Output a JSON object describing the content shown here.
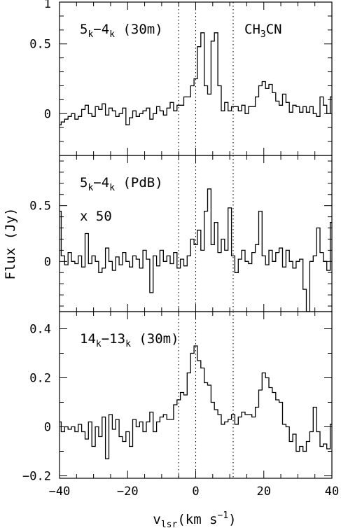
{
  "chart_data": {
    "type": "line",
    "shared_xlim": [
      -40,
      40
    ],
    "xlabel": {
      "main": "v",
      "sub": "lsr",
      "rest": "(km s",
      "sup": "−1",
      "close": ")"
    },
    "ylabel": "Flux (Jy)",
    "x_ticks": [
      "−40",
      "−20",
      "0",
      "20",
      "40"
    ],
    "x_tick_values": [
      -40,
      -20,
      0,
      20,
      40
    ],
    "reference_velocities": [
      -5,
      0,
      11
    ],
    "panels": [
      {
        "label": {
          "a": "5",
          "as": "k",
          "dash": "−",
          "b": "4",
          "bs": "k",
          "c": " (30m)"
        },
        "extra": {
          "a": "CH",
          "as": "3",
          "b": "CN"
        },
        "ylim": [
          -0.3,
          0.8
        ],
        "y_tick_labels": [
          "0",
          "0.5",
          "1"
        ],
        "y_tick_values": [
          0,
          0.5,
          1.0
        ],
        "x": [
          -40,
          -39,
          -38,
          -37,
          -36,
          -35,
          -34,
          -33,
          -32,
          -31,
          -30,
          -29,
          -28,
          -27,
          -26,
          -25,
          -24,
          -23,
          -22,
          -21,
          -20,
          -19,
          -18,
          -17,
          -16,
          -15,
          -14,
          -13,
          -12,
          -11,
          -10,
          -9,
          -8,
          -7,
          -6,
          -5,
          -4,
          -3,
          -2,
          -1,
          0,
          1,
          2,
          3,
          4,
          5,
          6,
          7,
          8,
          9,
          10,
          11,
          12,
          13,
          14,
          15,
          16,
          17,
          18,
          19,
          20,
          21,
          22,
          23,
          24,
          25,
          26,
          27,
          28,
          29,
          30,
          31,
          32,
          33,
          34,
          35,
          36,
          37,
          38,
          39,
          40
        ],
        "values": [
          -0.08,
          -0.06,
          -0.04,
          -0.02,
          0.0,
          -0.04,
          -0.02,
          0.03,
          0.06,
          0.0,
          -0.02,
          0.05,
          0.03,
          0.07,
          -0.01,
          0.04,
          0.02,
          -0.02,
          0.0,
          0.04,
          -0.08,
          -0.03,
          0.02,
          -0.02,
          0.0,
          0.02,
          0.04,
          -0.04,
          0.0,
          0.05,
          0.02,
          -0.01,
          0.04,
          0.08,
          0.02,
          0.06,
          0.06,
          0.12,
          0.12,
          0.2,
          0.25,
          0.48,
          0.58,
          0.2,
          0.14,
          0.52,
          0.58,
          0.2,
          0.02,
          0.08,
          0.02,
          0.05,
          0.05,
          0.02,
          0.06,
          0.0,
          0.05,
          0.05,
          0.12,
          0.2,
          0.23,
          0.18,
          0.21,
          0.15,
          0.09,
          0.06,
          0.14,
          0.08,
          0.01,
          0.06,
          0.05,
          0.01,
          0.05,
          0.01,
          0.05,
          0.0,
          -0.02,
          0.12,
          0.06,
          0.0,
          0.12
        ]
      },
      {
        "label": {
          "a": "5",
          "as": "k",
          "dash": "−",
          "b": "4",
          "bs": "k",
          "c": " (PdB)"
        },
        "extra_text": "x 50",
        "ylim": [
          -0.45,
          0.95
        ],
        "y_tick_labels": [
          "0",
          "0.5"
        ],
        "y_tick_values": [
          0,
          0.5
        ],
        "x": [
          -40,
          -39,
          -38,
          -37,
          -36,
          -35,
          -34,
          -33,
          -32,
          -31,
          -30,
          -29,
          -28,
          -27,
          -26,
          -25,
          -24,
          -23,
          -22,
          -21,
          -20,
          -19,
          -18,
          -17,
          -16,
          -15,
          -14,
          -13,
          -12,
          -11,
          -10,
          -9,
          -8,
          -7,
          -6,
          -5,
          -4,
          -3,
          -2,
          -1,
          0,
          1,
          2,
          3,
          4,
          5,
          6,
          7,
          8,
          9,
          10,
          11,
          12,
          13,
          14,
          15,
          16,
          17,
          18,
          19,
          20,
          21,
          22,
          23,
          24,
          25,
          26,
          27,
          28,
          29,
          30,
          31,
          32,
          33,
          34,
          35,
          36,
          37,
          38,
          39,
          40
        ],
        "values": [
          0.45,
          0.05,
          -0.03,
          0.08,
          0.0,
          -0.02,
          0.05,
          -0.05,
          0.25,
          -0.02,
          0.05,
          0.0,
          -0.1,
          -0.06,
          0.12,
          0.0,
          -0.08,
          0.04,
          -0.03,
          0.08,
          0.0,
          -0.05,
          0.05,
          0.02,
          -0.06,
          0.1,
          0.02,
          -0.28,
          0.05,
          -0.04,
          0.1,
          0.0,
          0.05,
          -0.02,
          0.08,
          -0.06,
          0.02,
          -0.04,
          0.05,
          0.2,
          0.15,
          0.28,
          0.1,
          0.45,
          0.65,
          0.15,
          0.35,
          0.08,
          0.2,
          0.1,
          0.48,
          0.05,
          -0.1,
          0.02,
          0.1,
          0.0,
          -0.02,
          0.08,
          0.15,
          0.45,
          0.05,
          -0.03,
          0.1,
          0.0,
          0.08,
          0.12,
          -0.05,
          0.1,
          0.0,
          -0.06,
          0.0,
          0.02,
          -0.25,
          -0.45,
          0.0,
          0.05,
          0.3,
          0.08,
          0.0,
          -0.08,
          0.35
        ]
      },
      {
        "label": {
          "a": "14",
          "as": "k",
          "dash": "−",
          "b": "13",
          "bs": "k",
          "c": " (30m)"
        },
        "ylim": [
          -0.21,
          0.47
        ],
        "y_tick_labels": [
          "−0.2",
          "0",
          "0.2",
          "0.4"
        ],
        "y_tick_values": [
          -0.2,
          0,
          0.2,
          0.4
        ],
        "x": [
          -40,
          -39,
          -38,
          -37,
          -36,
          -35,
          -34,
          -33,
          -32,
          -31,
          -30,
          -29,
          -28,
          -27,
          -26,
          -25,
          -24,
          -23,
          -22,
          -21,
          -20,
          -19,
          -18,
          -17,
          -16,
          -15,
          -14,
          -13,
          -12,
          -11,
          -10,
          -9,
          -8,
          -7,
          -6,
          -5,
          -4,
          -3,
          -2,
          -1,
          0,
          1,
          2,
          3,
          4,
          5,
          6,
          7,
          8,
          9,
          10,
          11,
          12,
          13,
          14,
          15,
          16,
          17,
          18,
          19,
          20,
          21,
          22,
          23,
          24,
          25,
          26,
          27,
          28,
          29,
          30,
          31,
          32,
          33,
          34,
          35,
          36,
          37,
          38,
          39,
          40
        ],
        "values": [
          0.02,
          -0.02,
          0.0,
          -0.01,
          0.0,
          -0.02,
          0.01,
          -0.02,
          -0.05,
          0.02,
          -0.08,
          0.0,
          -0.04,
          0.04,
          -0.13,
          0.05,
          -0.01,
          0.03,
          -0.04,
          -0.06,
          -0.02,
          -0.08,
          0.03,
          0.0,
          0.02,
          -0.02,
          0.02,
          0.06,
          -0.02,
          0.02,
          0.04,
          0.05,
          0.03,
          0.03,
          0.09,
          0.11,
          0.14,
          0.13,
          0.22,
          0.3,
          0.33,
          0.27,
          0.24,
          0.18,
          0.17,
          0.1,
          0.07,
          0.05,
          0.01,
          0.02,
          0.03,
          0.05,
          0.01,
          0.04,
          0.06,
          0.05,
          0.05,
          0.04,
          0.08,
          0.15,
          0.22,
          0.2,
          0.16,
          0.14,
          0.11,
          0.1,
          0.01,
          0.0,
          -0.06,
          -0.03,
          -0.1,
          -0.08,
          -0.1,
          -0.06,
          -0.02,
          0.08,
          -0.02,
          -0.08,
          -0.07,
          -0.09,
          0.01
        ]
      }
    ]
  }
}
